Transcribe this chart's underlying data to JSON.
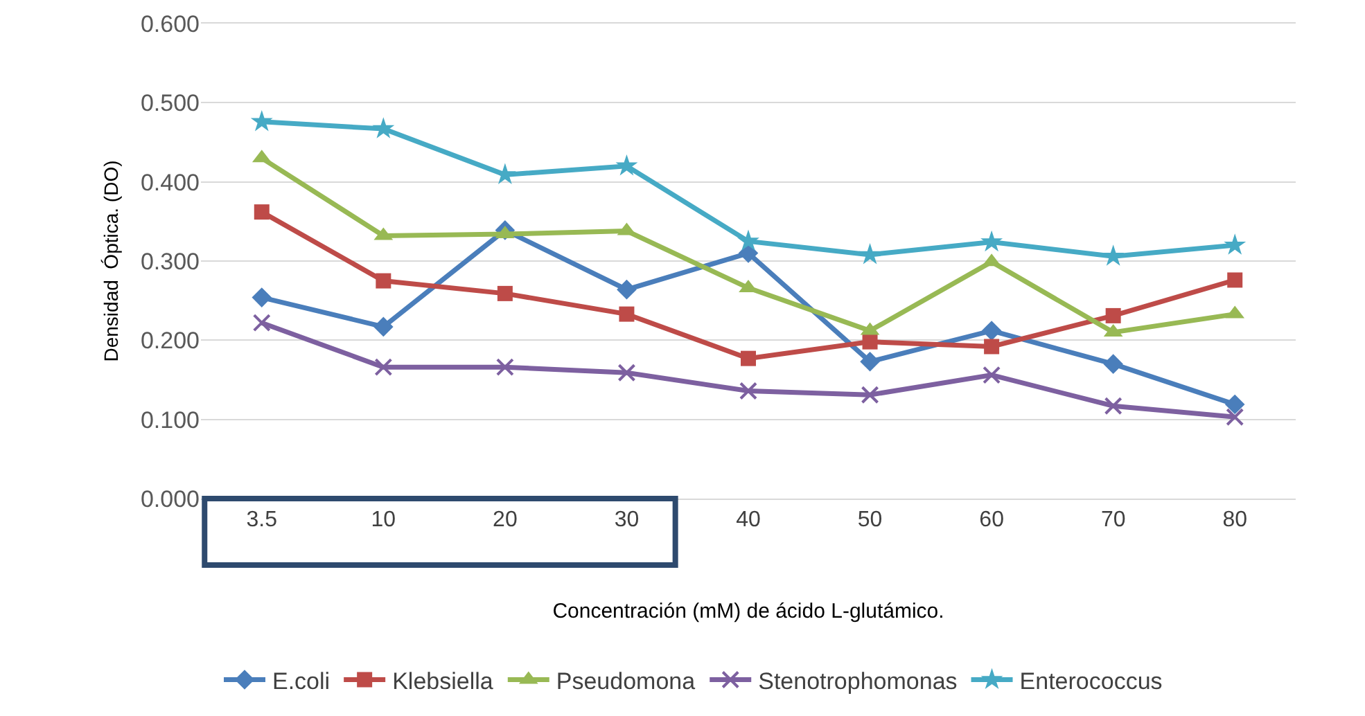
{
  "chart_data": {
    "type": "line",
    "xlabel": "Concentración (mM) de ácido L-glutámico.",
    "ylabel": "Densidad  Óptica. (DO)",
    "categories": [
      "3.5",
      "10",
      "20",
      "30",
      "40",
      "50",
      "60",
      "70",
      "80"
    ],
    "series": [
      {
        "name": "E.coli",
        "color": "#4a7ebb",
        "marker": "diamond",
        "values": [
          0.254,
          0.217,
          0.339,
          0.264,
          0.31,
          0.173,
          0.212,
          0.17,
          0.119
        ]
      },
      {
        "name": "Klebsiella",
        "color": "#be4b48",
        "marker": "square",
        "values": [
          0.362,
          0.275,
          0.259,
          0.233,
          0.177,
          0.198,
          0.192,
          0.231,
          0.276
        ]
      },
      {
        "name": "Pseudomona",
        "color": "#98b954",
        "marker": "triangle",
        "values": [
          0.43,
          0.332,
          0.334,
          0.338,
          0.266,
          0.212,
          0.299,
          0.21,
          0.233
        ]
      },
      {
        "name": "Stenotrophomonas",
        "color": "#7d60a0",
        "marker": "cross",
        "values": [
          0.222,
          0.166,
          0.166,
          0.159,
          0.136,
          0.131,
          0.156,
          0.117,
          0.103
        ]
      },
      {
        "name": "Enterococcus",
        "color": "#46aac5",
        "marker": "star",
        "values": [
          0.476,
          0.467,
          0.409,
          0.42,
          0.325,
          0.308,
          0.324,
          0.306,
          0.32
        ]
      }
    ],
    "ylim": [
      0,
      0.6
    ],
    "yticks": [
      {
        "value": 0,
        "label": "0.000"
      },
      {
        "value": 0.1,
        "label": "0.100"
      },
      {
        "value": 0.2,
        "label": "0.200"
      },
      {
        "value": 0.3,
        "label": "0.300"
      },
      {
        "value": 0.4,
        "label": "0.400"
      },
      {
        "value": 0.5,
        "label": "0.500"
      },
      {
        "value": 0.6,
        "label": "0.600"
      }
    ],
    "grid": "y",
    "legend": "bottom",
    "line_style": "solid"
  }
}
